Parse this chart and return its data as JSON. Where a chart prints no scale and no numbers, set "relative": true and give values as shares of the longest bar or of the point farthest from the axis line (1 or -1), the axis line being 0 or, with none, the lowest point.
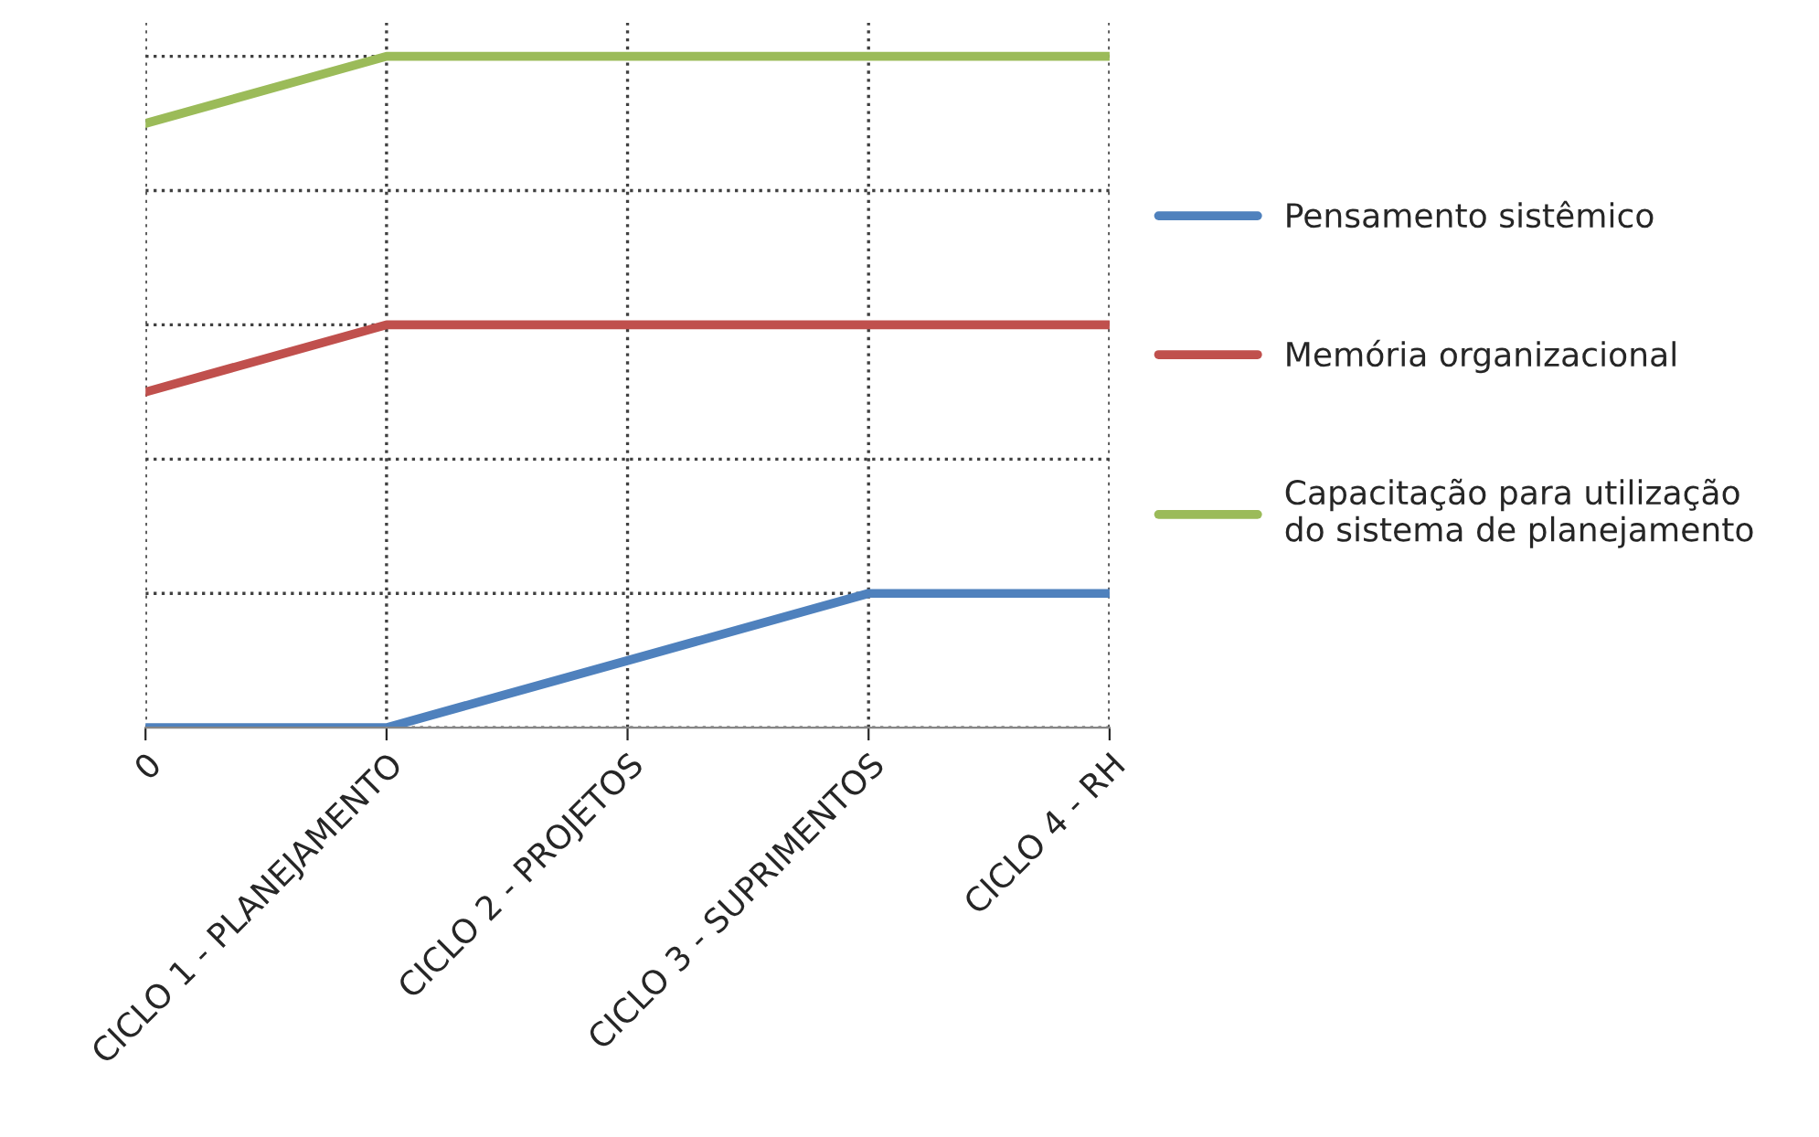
{
  "chart_data": {
    "type": "line",
    "relative": true,
    "categories": [
      "0",
      "CICLO 1 - PLANEJAMENTO",
      "CICLO 2 - PROJETOS",
      "CICLO 3 - SUPRIMENTOS",
      "CICLO 4 - RH"
    ],
    "series": [
      {
        "name": "Pensamento sistêmico",
        "color": "#4f81bd",
        "values": [
          0,
          0,
          0.1,
          0.2,
          0.2
        ]
      },
      {
        "name": "Memória organizacional",
        "color": "#c0504d",
        "values": [
          0.5,
          0.6,
          0.6,
          0.6,
          0.6
        ]
      },
      {
        "name": "Capacitação para utilização\ndo sistema de planejamento",
        "color": "#9bbb59",
        "values": [
          0.9,
          1,
          1,
          1,
          1
        ]
      }
    ],
    "grid": true,
    "legend": "right",
    "marker": "none",
    "line_style": "solid"
  }
}
